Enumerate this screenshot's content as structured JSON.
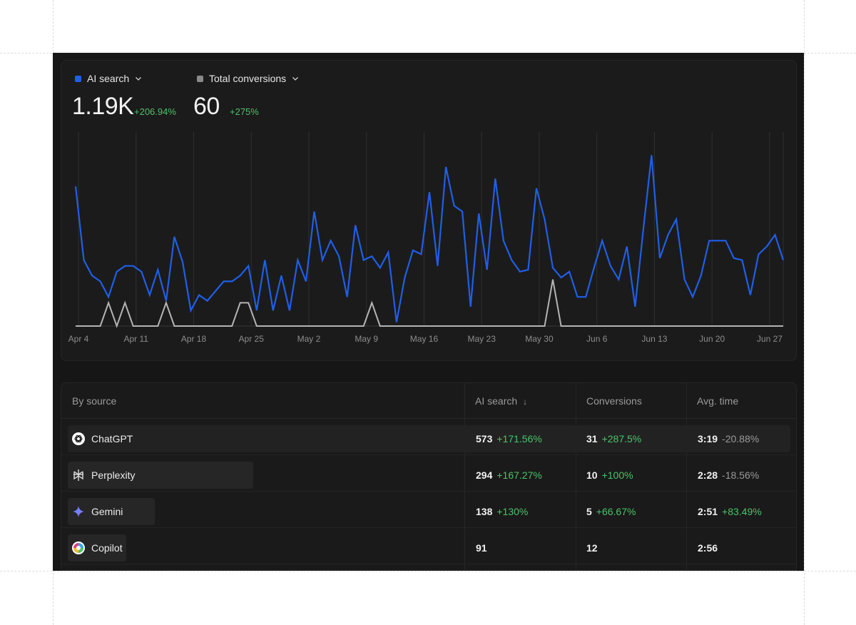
{
  "metrics": [
    {
      "label": "AI search",
      "value": "1.19K",
      "delta": "+206.94%",
      "color": "#1f5fe8"
    },
    {
      "label": "Total conversions",
      "value": "60",
      "delta": "+275%",
      "color": "#8a8a8a"
    }
  ],
  "chart_data": {
    "type": "line",
    "x_ticks": [
      "Apr 4",
      "Apr 11",
      "Apr 18",
      "Apr 25",
      "May 2",
      "May 9",
      "May 16",
      "May 23",
      "May 30",
      "Jun 6",
      "Jun 13",
      "Jun 20",
      "Jun 27"
    ],
    "grid": true,
    "ylim": [
      0,
      100
    ],
    "series": [
      {
        "name": "AI search",
        "color": "#1f5fe8",
        "values": [
          72,
          34,
          26,
          23,
          15,
          28,
          31,
          31,
          28,
          16,
          29,
          13,
          46,
          33,
          8,
          16,
          13,
          18,
          23,
          23,
          26,
          31,
          8,
          34,
          8,
          26,
          8,
          34,
          23,
          59,
          34,
          44,
          36,
          15,
          52,
          34,
          36,
          30,
          38,
          2,
          25,
          39,
          37,
          69,
          31,
          82,
          62,
          59,
          10,
          58,
          29,
          76,
          44,
          34,
          28,
          29,
          71,
          55,
          30,
          25,
          28,
          15,
          15,
          30,
          44,
          31,
          24,
          41,
          10,
          50,
          88,
          35,
          47,
          55,
          24,
          15,
          26,
          44,
          44,
          44,
          35,
          34,
          16,
          37,
          41,
          47,
          34
        ]
      },
      {
        "name": "Total conversions",
        "color": "#b4b4b4",
        "values": [
          0,
          0,
          0,
          0,
          12,
          0,
          12,
          0,
          0,
          0,
          0,
          12,
          0,
          0,
          0,
          0,
          0,
          0,
          0,
          0,
          12,
          12,
          0,
          0,
          0,
          0,
          0,
          0,
          0,
          0,
          0,
          0,
          0,
          0,
          0,
          0,
          12,
          0,
          0,
          0,
          0,
          0,
          0,
          0,
          0,
          0,
          0,
          0,
          0,
          0,
          0,
          0,
          0,
          0,
          0,
          0,
          0,
          0,
          24,
          0,
          0,
          0,
          0,
          0,
          0,
          0,
          0,
          0,
          0,
          0,
          0,
          0,
          0,
          0,
          0,
          0,
          0,
          0,
          0,
          0,
          0,
          0,
          0,
          0,
          0,
          0,
          0
        ]
      }
    ]
  },
  "table": {
    "headers": [
      "By source",
      "AI search",
      "Conversions",
      "Avg. time"
    ],
    "rows": [
      {
        "source": "ChatGPT",
        "icon": "chatgpt-icon",
        "share": 1.0,
        "ai_search": "573",
        "ai_delta": "+171.56%",
        "conversions": "31",
        "conv_delta": "+287.5%",
        "avg_time": "3:19",
        "time_delta": "-20.88%"
      },
      {
        "source": "Perplexity",
        "icon": "perplexity-icon",
        "share": 0.51,
        "ai_search": "294",
        "ai_delta": "+167.27%",
        "conversions": "10",
        "conv_delta": "+100%",
        "avg_time": "2:28",
        "time_delta": "-18.56%"
      },
      {
        "source": "Gemini",
        "icon": "gemini-icon",
        "share": 0.24,
        "ai_search": "138",
        "ai_delta": "+130%",
        "conversions": "5",
        "conv_delta": "+66.67%",
        "avg_time": "2:51",
        "time_delta": "+83.49%"
      },
      {
        "source": "Copilot",
        "icon": "copilot-icon",
        "share": 0.16,
        "ai_search": "91",
        "ai_delta": "",
        "conversions": "12",
        "conv_delta": "",
        "avg_time": "2:56",
        "time_delta": ""
      }
    ]
  }
}
